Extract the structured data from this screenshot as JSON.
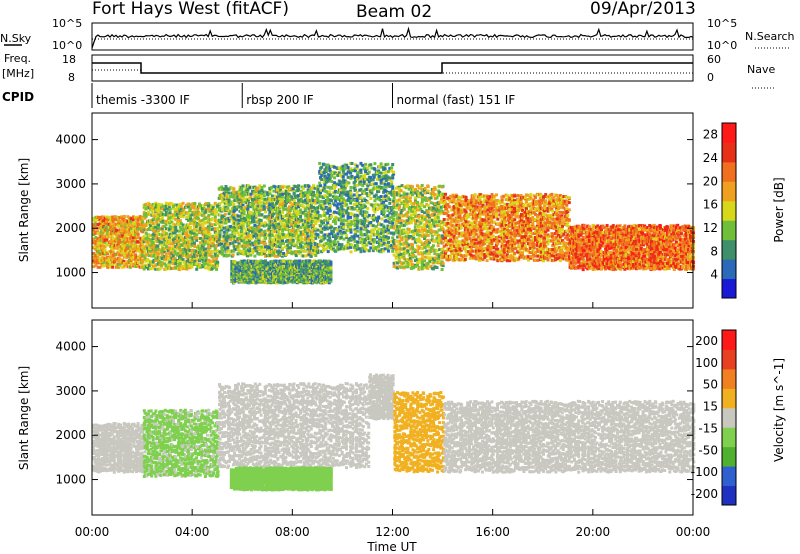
{
  "header": {
    "station": "Fort Hays West (fitACF)",
    "beam": "Beam 02",
    "date": "09/Apr/2013"
  },
  "side_labels": {
    "nsky": "N.Sky",
    "freq": "Freq.",
    "freq_unit": "[MHz]",
    "cpid": "CPID",
    "nsearch": "N.Search",
    "nave": "Nave"
  },
  "strip_ticks": {
    "noise_left": [
      "10^5",
      "10^0"
    ],
    "noise_right": [
      "10^5",
      "10^0"
    ],
    "freq_left": [
      "18",
      "8"
    ],
    "nave_right": [
      "60",
      "0"
    ]
  },
  "cpid_segments": [
    {
      "label": "themis -3300 IF",
      "start_h": 0.0,
      "end_h": 6.0
    },
    {
      "label": "rbsp 200 IF",
      "start_h": 6.0,
      "end_h": 12.0
    },
    {
      "label": "normal (fast) 151 IF",
      "start_h": 12.0,
      "end_h": 24.0
    }
  ],
  "chart_data": [
    {
      "type": "heatmap",
      "panel": "power",
      "xlabel": "",
      "ylabel": "Slant Range [km]",
      "xlim_hours": [
        0,
        24
      ],
      "ylim_km": [
        200,
        4600
      ],
      "y_ticks": [
        "1000",
        "2000",
        "3000",
        "4000"
      ],
      "colorbar_label": "Power [dB]",
      "colorbar_ticks": [
        "4",
        "8",
        "12",
        "16",
        "20",
        "24",
        "28"
      ],
      "colorbar_range": [
        0,
        30
      ],
      "colors": [
        "#1a1ad6",
        "#2a6ab8",
        "#3f8f6a",
        "#6fbf3a",
        "#d8d81a",
        "#f0a020",
        "#f07020",
        "#e83018",
        "#ff1a1a"
      ],
      "bands": [
        {
          "h": [
            0.0,
            2.0
          ],
          "range_km": [
            1150,
            2300
          ],
          "value_db": 18
        },
        {
          "h": [
            2.0,
            5.0
          ],
          "range_km": [
            1100,
            2600
          ],
          "value_db": 14
        },
        {
          "h": [
            5.0,
            9.0
          ],
          "range_km": [
            1400,
            3000
          ],
          "value_db": 12
        },
        {
          "h": [
            9.0,
            12.0
          ],
          "range_km": [
            1500,
            3500
          ],
          "value_db": 10
        },
        {
          "h": [
            12.0,
            14.0
          ],
          "range_km": [
            1100,
            3000
          ],
          "value_db": 14
        },
        {
          "h": [
            14.0,
            19.0
          ],
          "range_km": [
            1300,
            2800
          ],
          "value_db": 20
        },
        {
          "h": [
            19.0,
            24.0
          ],
          "range_km": [
            1100,
            2100
          ],
          "value_db": 22
        },
        {
          "h": [
            5.5,
            9.5
          ],
          "range_km": [
            800,
            1300
          ],
          "value_db": 10
        }
      ]
    },
    {
      "type": "heatmap",
      "panel": "velocity",
      "xlabel": "Time UT",
      "ylabel": "Slant Range [km]",
      "xlim_hours": [
        0,
        24
      ],
      "ylim_km": [
        200,
        4600
      ],
      "y_ticks": [
        "1000",
        "2000",
        "3000",
        "4000"
      ],
      "x_ticks": [
        "00:00",
        "04:00",
        "08:00",
        "12:00",
        "16:00",
        "20:00",
        "00:00"
      ],
      "colorbar_label": "Velocity [m s^-1]",
      "colorbar_ticks": [
        "200",
        "100",
        "50",
        "15",
        "-15",
        "-50",
        "-100",
        "-200"
      ],
      "colorbar_range": [
        -250,
        250
      ],
      "colors": [
        "#2030c0",
        "#3060d0",
        "#50b030",
        "#80d050",
        "#c8c8c0",
        "#f0b020",
        "#f08020",
        "#e84020",
        "#ff1a1a"
      ],
      "bands": [
        {
          "h": [
            0.0,
            2.0
          ],
          "range_km": [
            1200,
            2300
          ],
          "value_ms": 0
        },
        {
          "h": [
            2.0,
            5.0
          ],
          "range_km": [
            1100,
            2600
          ],
          "value_ms": -40
        },
        {
          "h": [
            5.0,
            11.0
          ],
          "range_km": [
            1300,
            3200
          ],
          "value_ms": 0
        },
        {
          "h": [
            11.0,
            12.0
          ],
          "range_km": [
            2400,
            3400
          ],
          "value_ms": 0
        },
        {
          "h": [
            12.0,
            14.0
          ],
          "range_km": [
            1200,
            3000
          ],
          "value_ms": 60
        },
        {
          "h": [
            14.0,
            24.0
          ],
          "range_km": [
            1200,
            2800
          ],
          "value_ms": 0
        },
        {
          "h": [
            5.5,
            9.5
          ],
          "range_km": [
            800,
            1300
          ],
          "value_ms": -60
        }
      ]
    }
  ]
}
